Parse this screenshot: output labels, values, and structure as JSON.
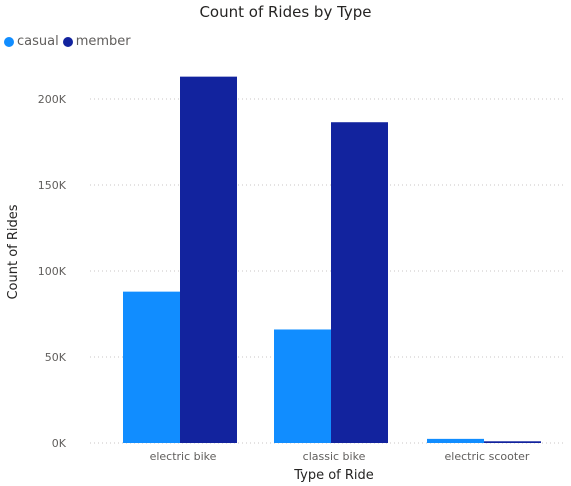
{
  "chart_data": {
    "type": "bar",
    "title": "Count of Rides by Type",
    "xlabel": "Type of Ride",
    "ylabel": "Count of Rides",
    "categories": [
      "electric bike",
      "classic bike",
      "electric scooter"
    ],
    "series": [
      {
        "name": "casual",
        "values": [
          88000,
          66000,
          2400
        ],
        "color": "#118dff"
      },
      {
        "name": "member",
        "values": [
          213000,
          186500,
          1000
        ],
        "color": "#12239e"
      }
    ],
    "ylim": [
      0,
      200000
    ],
    "yticks": [
      0,
      50000,
      100000,
      150000,
      200000
    ],
    "ytick_labels": [
      "0K",
      "50K",
      "100K",
      "150K",
      "200K"
    ],
    "grid": true,
    "legend_position": "top-left"
  }
}
